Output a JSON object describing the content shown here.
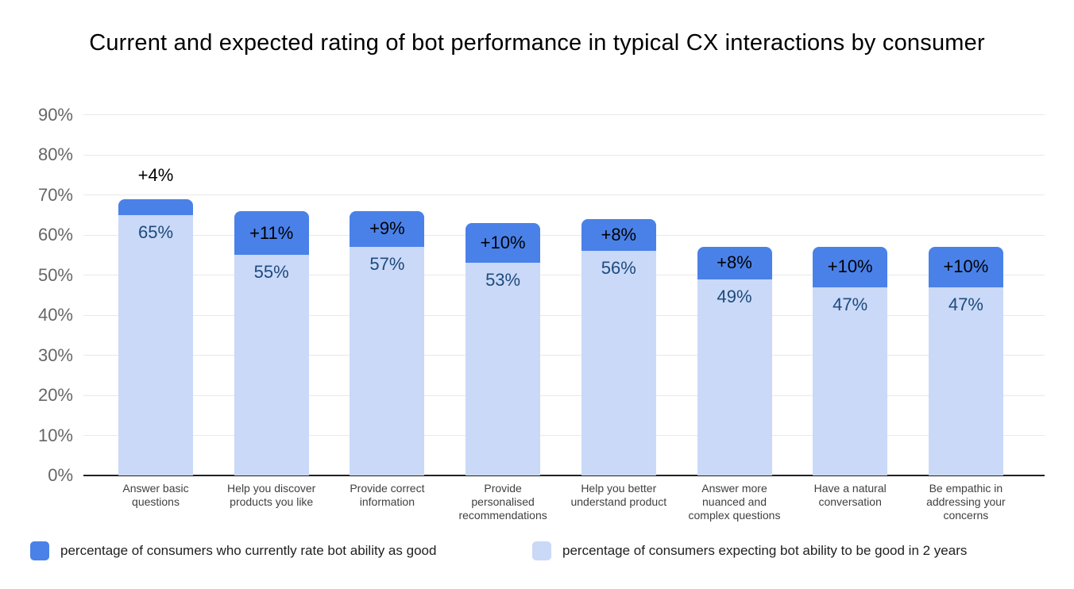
{
  "chart_data": {
    "type": "bar",
    "stacked": true,
    "title": "Current and expected rating of bot performance in typical CX interactions by consumer",
    "categories": [
      "Answer basic questions",
      "Help you discover products you like",
      "Provide correct information",
      "Provide personalised recommendations",
      "Help you better understand product",
      "Answer more nuanced and complex questions",
      "Have a natural conversation",
      "Be empathic in addressing your concerns"
    ],
    "series": [
      {
        "name": "percentage of consumers expecting bot ability to be good in 2 years",
        "role": "base-segment",
        "color": "#c9d9f7",
        "values": [
          65,
          55,
          57,
          53,
          56,
          49,
          47,
          47
        ],
        "labels": [
          "65%",
          "55%",
          "57%",
          "53%",
          "56%",
          "49%",
          "47%",
          "47%"
        ],
        "label_color": "#1e4a7d"
      },
      {
        "name": "percentage of consumers who currently rate bot ability as good",
        "role": "top-segment",
        "color": "#4a81e8",
        "values": [
          4,
          11,
          9,
          10,
          8,
          8,
          10,
          10
        ],
        "labels": [
          "+4%",
          "+11%",
          "+9%",
          "+10%",
          "+8%",
          "+8%",
          "+10%",
          "+10%"
        ],
        "label_color": "#000000"
      }
    ],
    "stack_totals": [
      69,
      66,
      66,
      63,
      64,
      57,
      57,
      57
    ],
    "xlabel": "",
    "ylabel": "",
    "ylim": [
      0,
      90
    ],
    "yticks": [
      "0%",
      "10%",
      "20%",
      "30%",
      "40%",
      "50%",
      "60%",
      "70%",
      "80%",
      "90%"
    ],
    "grid": true,
    "legend_position": "bottom",
    "legend": [
      {
        "label": "percentage of consumers who currently rate bot ability as good",
        "color": "#4a81e8"
      },
      {
        "label": "percentage of consumers expecting bot ability to be good in 2 years",
        "color": "#c9d9f7"
      }
    ],
    "colors": {
      "axis": "#212121",
      "gridline": "#e9e9e9",
      "tick_label": "#666666",
      "category_label": "#404040",
      "title": "#000000"
    }
  }
}
